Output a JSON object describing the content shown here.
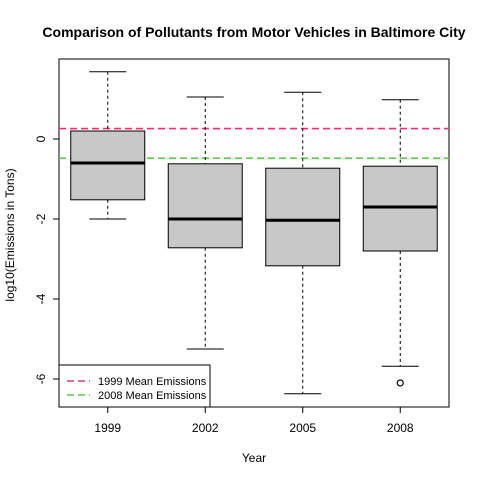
{
  "chart_data": {
    "type": "boxplot",
    "title": "Comparison of Pollutants from Motor Vehicles in Baltimore City",
    "xlabel": "Year",
    "ylabel": "log10(Emissions in Tons)",
    "categories": [
      "1999",
      "2002",
      "2005",
      "2008"
    ],
    "ylim": [
      -6.7,
      2.0
    ],
    "yticks": [
      -6,
      -4,
      -2,
      0
    ],
    "yticks_labels": [
      "-6",
      "-4",
      "-2",
      "0"
    ],
    "grid": false,
    "box_fill": "#c8c8c8",
    "boxes": [
      {
        "category": "1999",
        "whisker_low": -2.0,
        "q1": -1.52,
        "median": -0.6,
        "q3": 0.2,
        "whisker_high": 1.68,
        "outliers": []
      },
      {
        "category": "2002",
        "whisker_low": -5.25,
        "q1": -2.72,
        "median": -2.0,
        "q3": -0.62,
        "whisker_high": 1.05,
        "outliers": []
      },
      {
        "category": "2005",
        "whisker_low": -6.37,
        "q1": -3.17,
        "median": -2.03,
        "q3": -0.73,
        "whisker_high": 1.17,
        "outliers": []
      },
      {
        "category": "2008",
        "whisker_low": -5.68,
        "q1": -2.8,
        "median": -1.7,
        "q3": -0.68,
        "whisker_high": 0.98,
        "outliers": [
          -6.1
        ]
      }
    ],
    "reference_lines": [
      {
        "name": "1999 Mean Emissions",
        "value": 0.26,
        "color": "#df3a66"
      },
      {
        "name": "2008 Mean Emissions",
        "value": -0.48,
        "color": "#5dcc4a"
      }
    ],
    "legend_position": "bottom-left"
  }
}
